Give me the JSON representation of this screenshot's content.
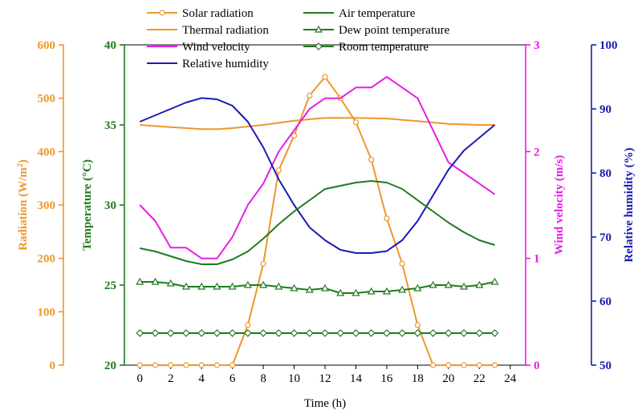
{
  "chart_data": {
    "type": "line",
    "xlabel": "Time (h)",
    "x_ticks": [
      0,
      2,
      4,
      6,
      8,
      10,
      12,
      14,
      16,
      18,
      20,
      22,
      24
    ],
    "xlim": [
      -1,
      25
    ],
    "axes": {
      "radiation": {
        "label": "Radiation (W/m",
        "label_sup": "2",
        "label_end": ")",
        "range": [
          0,
          600
        ],
        "ticks": [
          0,
          100,
          200,
          300,
          400,
          500,
          600
        ],
        "color": "#F0962B"
      },
      "temperature": {
        "label": "Temperature (°C)",
        "range": [
          20,
          40
        ],
        "ticks": [
          20,
          25,
          30,
          35,
          40
        ],
        "color": "#1E7B1E"
      },
      "wind": {
        "label": "Wind velocity (m/s)",
        "range": [
          0,
          3
        ],
        "ticks": [
          0,
          1,
          2,
          3
        ],
        "color": "#E61EE6"
      },
      "humidity": {
        "label": "Relative humidity (%)",
        "range": [
          50,
          100
        ],
        "ticks": [
          50,
          60,
          70,
          80,
          90,
          100
        ],
        "color": "#1A1AB4"
      }
    },
    "series": [
      {
        "name": "Solar radiation",
        "axis": "radiation",
        "color": "#F0962B",
        "marker": "circle",
        "x": [
          0,
          1,
          2,
          3,
          4,
          5,
          6,
          7,
          8,
          9,
          10,
          11,
          12,
          13,
          14,
          15,
          16,
          17,
          18,
          19,
          20,
          21,
          22,
          23
        ],
        "values": [
          0,
          0,
          0,
          0,
          0,
          0,
          0,
          75,
          190,
          365,
          430,
          505,
          540,
          500,
          455,
          385,
          275,
          190,
          75,
          0,
          0,
          0,
          0,
          0
        ]
      },
      {
        "name": "Thermal radiation",
        "axis": "radiation",
        "color": "#F0962B",
        "marker": "none",
        "x": [
          0,
          2,
          4,
          5,
          6,
          8,
          10,
          12,
          14,
          16,
          18,
          20,
          22,
          23
        ],
        "values": [
          450,
          446,
          442,
          442,
          444,
          450,
          458,
          463,
          463,
          462,
          457,
          452,
          450,
          450
        ]
      },
      {
        "name": "Wind velocity",
        "axis": "wind",
        "color": "#E61EE6",
        "marker": "none",
        "x": [
          0,
          1,
          2,
          3,
          4,
          5,
          6,
          7,
          8,
          9,
          10,
          11,
          12,
          13,
          14,
          15,
          16,
          17,
          18,
          19,
          20,
          21,
          22,
          23
        ],
        "values": [
          1.5,
          1.35,
          1.1,
          1.1,
          1.0,
          1.0,
          1.2,
          1.5,
          1.7,
          2.0,
          2.2,
          2.4,
          2.5,
          2.5,
          2.6,
          2.6,
          2.7,
          2.6,
          2.5,
          2.2,
          1.9,
          1.8,
          1.7,
          1.6
        ]
      },
      {
        "name": "Relative humidity",
        "axis": "humidity",
        "color": "#1A1AB4",
        "marker": "none",
        "x": [
          0,
          1,
          2,
          3,
          4,
          5,
          6,
          7,
          8,
          9,
          10,
          11,
          12,
          13,
          14,
          15,
          16,
          17,
          18,
          19,
          20,
          21,
          22,
          23
        ],
        "values": [
          88,
          89,
          90,
          91,
          91.7,
          91.5,
          90.5,
          88,
          84,
          79,
          75,
          71.5,
          69.5,
          68,
          67.5,
          67.5,
          67.8,
          69.5,
          72.5,
          76.5,
          80.5,
          83.5,
          85.5,
          87.5
        ]
      },
      {
        "name": "Air temperature",
        "axis": "temperature",
        "color": "#1E7B1E",
        "marker": "none",
        "x": [
          0,
          1,
          2,
          3,
          4,
          5,
          6,
          7,
          8,
          9,
          10,
          11,
          12,
          13,
          14,
          15,
          16,
          17,
          18,
          19,
          20,
          21,
          22,
          23
        ],
        "values": [
          27.3,
          27.1,
          26.8,
          26.5,
          26.3,
          26.3,
          26.6,
          27.1,
          27.9,
          28.8,
          29.6,
          30.3,
          31.0,
          31.2,
          31.4,
          31.5,
          31.4,
          31.0,
          30.3,
          29.6,
          28.9,
          28.3,
          27.8,
          27.5
        ]
      },
      {
        "name": "Dew point temperature",
        "axis": "temperature",
        "color": "#1E7B1E",
        "marker": "triangle",
        "x": [
          0,
          1,
          2,
          3,
          4,
          5,
          6,
          7,
          8,
          9,
          10,
          11,
          12,
          13,
          14,
          15,
          16,
          17,
          18,
          19,
          20,
          21,
          22,
          23
        ],
        "values": [
          25.2,
          25.2,
          25.1,
          24.9,
          24.9,
          24.9,
          24.9,
          25.0,
          25.0,
          24.9,
          24.8,
          24.7,
          24.8,
          24.5,
          24.5,
          24.6,
          24.6,
          24.7,
          24.8,
          25.0,
          25.0,
          24.9,
          25.0,
          25.2
        ]
      },
      {
        "name": "Room temperature",
        "axis": "temperature",
        "color": "#1E7B1E",
        "marker": "diamond",
        "x": [
          0,
          1,
          2,
          3,
          4,
          5,
          6,
          7,
          8,
          9,
          10,
          11,
          12,
          13,
          14,
          15,
          16,
          17,
          18,
          19,
          20,
          21,
          22,
          23
        ],
        "values": [
          22,
          22,
          22,
          22,
          22,
          22,
          22,
          22,
          22,
          22,
          22,
          22,
          22,
          22,
          22,
          22,
          22,
          22,
          22,
          22,
          22,
          22,
          22,
          22
        ]
      }
    ]
  }
}
